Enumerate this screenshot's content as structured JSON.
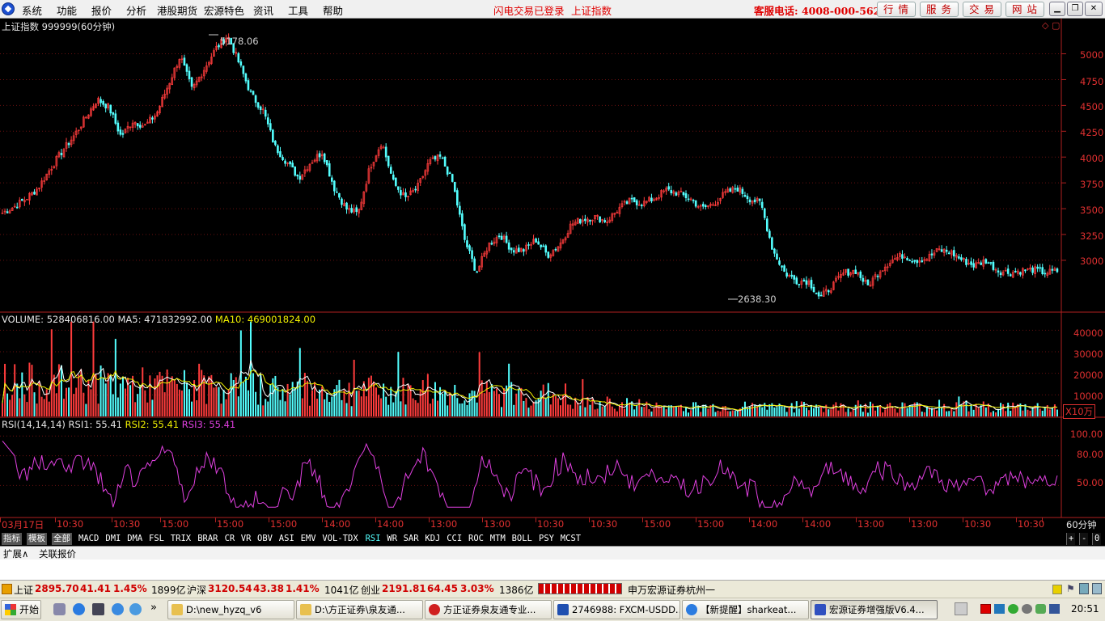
{
  "menubar": {
    "items": [
      "系统",
      "功能",
      "报价",
      "分析",
      "港股期货",
      "宏源特色",
      "资讯",
      "工具",
      "帮助"
    ],
    "login_status": "闪电交易已登录",
    "current_index": "上证指数",
    "hotline": "客服电话: 4008-000-562",
    "buttons": [
      "行 情",
      "服 务",
      "交 易",
      "网 站"
    ]
  },
  "price_panel": {
    "title": "上证指数 999999(60分钟)",
    "high_label": "5178.06",
    "low_label": "2638.30",
    "y_ticks": [
      "5000",
      "4750",
      "4500",
      "4250",
      "4000",
      "3750",
      "3500",
      "3250",
      "3000"
    ],
    "corner_icons": "◇ ▢"
  },
  "volume_panel": {
    "label": "VOLUME:",
    "value": "528406816.00",
    "ma5_label": "MA5:",
    "ma5_value": "471832992.00",
    "ma10_label": "MA10:",
    "ma10_value": "469001824.00",
    "y_ticks": [
      "40000",
      "30000",
      "20000",
      "10000"
    ],
    "unit": "X10万"
  },
  "rsi_panel": {
    "label": "RSI(14,14,14)",
    "rsi1_label": "RSI1:",
    "rsi1_value": "55.41",
    "rsi2_label": "RSI2:",
    "rsi2_value": "55.41",
    "rsi3_label": "RSI3:",
    "rsi3_value": "55.41",
    "y_ticks": [
      "100.00",
      "80.00",
      "50.00"
    ]
  },
  "time_axis": {
    "labels": [
      "03月17日",
      "10:30",
      "10:30",
      "15:00",
      "15:00",
      "15:00",
      "14:00",
      "14:00",
      "13:00",
      "13:00",
      "10:30",
      "10:30",
      "15:00",
      "15:00",
      "14:00",
      "14:00",
      "13:00",
      "13:00",
      "10:30",
      "10:30",
      "15:00"
    ],
    "period": "60分钟"
  },
  "indicator_tabs": [
    "指标",
    "模板",
    "全部",
    "MACD",
    "DMI",
    "DMA",
    "FSL",
    "TRIX",
    "BRAR",
    "CR",
    "VR",
    "OBV",
    "ASI",
    "EMV",
    "VOL-TDX",
    "RSI",
    "WR",
    "SAR",
    "KDJ",
    "CCI",
    "ROC",
    "MTM",
    "BOLL",
    "PSY",
    "MCST"
  ],
  "active_tab": "RSI",
  "zoom_buttons": [
    "+",
    "-",
    "0"
  ],
  "ext_tabs": [
    "扩展∧",
    "关联报价"
  ],
  "statusbar": {
    "sh_name": "上证",
    "sh_value": "2895.70",
    "sh_change": "41.41",
    "sh_pct": "1.45%",
    "sh_amount": "1899亿",
    "sz_name": "沪深",
    "sz_value": "3120.54",
    "sz_change": "43.38",
    "sz_pct": "1.41%",
    "sz_amount": "1041亿",
    "cy_name": "创业",
    "cy_value": "2191.81",
    "cy_change": "64.45",
    "cy_pct": "3.03%",
    "cy_amount": "1386亿",
    "broker": "申万宏源证券杭州一"
  },
  "taskbar": {
    "start": "开始",
    "tasks": [
      "D:\\new_hyzq_v6",
      "D:\\方正证券\\泉友通...",
      "方正证券泉友通专业...",
      "2746988: FXCM-USDD...",
      "【新提醒】sharkeat...",
      "宏源证券增强版V6.4..."
    ],
    "clock": "20:51"
  },
  "chart_data": {
    "type": "candlestick+bar+line",
    "price_series_approx": [
      3460,
      3520,
      3600,
      3700,
      3880,
      4050,
      4200,
      4380,
      4560,
      4480,
      4200,
      4350,
      4300,
      4420,
      4700,
      4980,
      4650,
      4850,
      5050,
      5178,
      4900,
      4600,
      4450,
      4100,
      3950,
      3800,
      3950,
      4050,
      3700,
      3500,
      3450,
      3900,
      4150,
      3750,
      3600,
      3700,
      3950,
      4000,
      3750,
      3200,
      2880,
      3150,
      3250,
      3100,
      3100,
      3200,
      3050,
      3150,
      3350,
      3400,
      3420,
      3380,
      3500,
      3580,
      3550,
      3600,
      3680,
      3650,
      3600,
      3500,
      3550,
      3650,
      3700,
      3600,
      3550,
      3100,
      2880,
      2800,
      2800,
      2638,
      2750,
      2880,
      2900,
      2750,
      2900,
      3000,
      3050,
      3000,
      3020,
      3100,
      3080,
      3000,
      2950,
      3000,
      2900,
      2880,
      2900,
      2910,
      2880,
      2895
    ],
    "y_range": [
      2600,
      5200
    ],
    "volume_y_range": [
      0,
      45000
    ],
    "rsi_y_range": [
      20,
      110
    ]
  }
}
